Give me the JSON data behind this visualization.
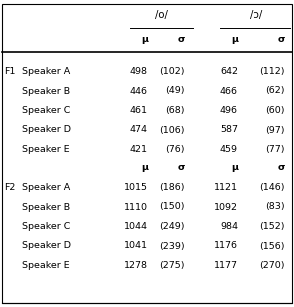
{
  "title_col1": "/o/",
  "title_col2": "/ɔ/",
  "header_mu": "μ",
  "header_sigma": "σ",
  "f1_label": "F1",
  "f2_label": "F2",
  "rows_f1": [
    {
      "speaker": "Speaker A",
      "o_mu": "498",
      "o_sigma": "(102)",
      "open_o_mu": "642",
      "open_o_sigma": "(112)"
    },
    {
      "speaker": "Speaker B",
      "o_mu": "446",
      "o_sigma": "(49)",
      "open_o_mu": "466",
      "open_o_sigma": "(62)"
    },
    {
      "speaker": "Speaker C",
      "o_mu": "461",
      "o_sigma": "(68)",
      "open_o_mu": "496",
      "open_o_sigma": "(60)"
    },
    {
      "speaker": "Speaker D",
      "o_mu": "474",
      "o_sigma": "(106)",
      "open_o_mu": "587",
      "open_o_sigma": "(97)"
    },
    {
      "speaker": "Speaker E",
      "o_mu": "421",
      "o_sigma": "(76)",
      "open_o_mu": "459",
      "open_o_sigma": "(77)"
    }
  ],
  "rows_f2": [
    {
      "speaker": "Speaker A",
      "o_mu": "1015",
      "o_sigma": "(186)",
      "open_o_mu": "1121",
      "open_o_sigma": "(146)"
    },
    {
      "speaker": "Speaker B",
      "o_mu": "1110",
      "o_sigma": "(150)",
      "open_o_mu": "1092",
      "open_o_sigma": "(83)"
    },
    {
      "speaker": "Speaker C",
      "o_mu": "1044",
      "o_sigma": "(249)",
      "open_o_mu": "984",
      "open_o_sigma": "(152)"
    },
    {
      "speaker": "Speaker D",
      "o_mu": "1041",
      "o_sigma": "(239)",
      "open_o_mu": "1176",
      "open_o_sigma": "(156)"
    },
    {
      "speaker": "Speaker E",
      "o_mu": "1278",
      "o_sigma": "(275)",
      "open_o_mu": "1177",
      "open_o_sigma": "(270)"
    }
  ],
  "bg_color": "#ffffff",
  "font_size": 6.8,
  "figsize": [
    2.94,
    3.07
  ],
  "dpi": 100
}
